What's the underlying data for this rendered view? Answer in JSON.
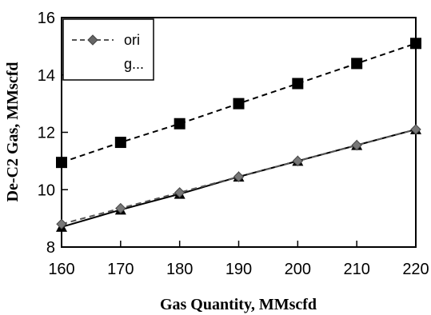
{
  "chart_data": {
    "type": "line",
    "title": "",
    "xlabel": "Gas Quantity, MMscfd",
    "ylabel": "De-C2 Gas, MMscfd",
    "xlim": [
      160,
      220
    ],
    "ylim": [
      8,
      16
    ],
    "x_ticks": [
      160,
      170,
      180,
      190,
      200,
      210,
      220
    ],
    "y_ticks": [
      8,
      10,
      12,
      14,
      16
    ],
    "grid": false,
    "legend_position": "top-left",
    "x": [
      160,
      170,
      180,
      190,
      200,
      210,
      220
    ],
    "series": [
      {
        "name": "ori",
        "marker": "diamond",
        "line_style": "dashed",
        "color": "#555555",
        "values": [
          8.8,
          9.35,
          9.9,
          10.45,
          11.0,
          11.55,
          12.1
        ]
      },
      {
        "name": "g...",
        "marker": "square",
        "line_style": "dashed",
        "color": "#000000",
        "values": [
          10.95,
          11.65,
          12.3,
          13.0,
          13.7,
          14.4,
          15.1
        ]
      },
      {
        "marker": "triangle",
        "line_style": "solid",
        "color": "#000000",
        "values": [
          8.7,
          9.3,
          9.85,
          10.45,
          11.0,
          11.55,
          12.1
        ]
      }
    ]
  }
}
